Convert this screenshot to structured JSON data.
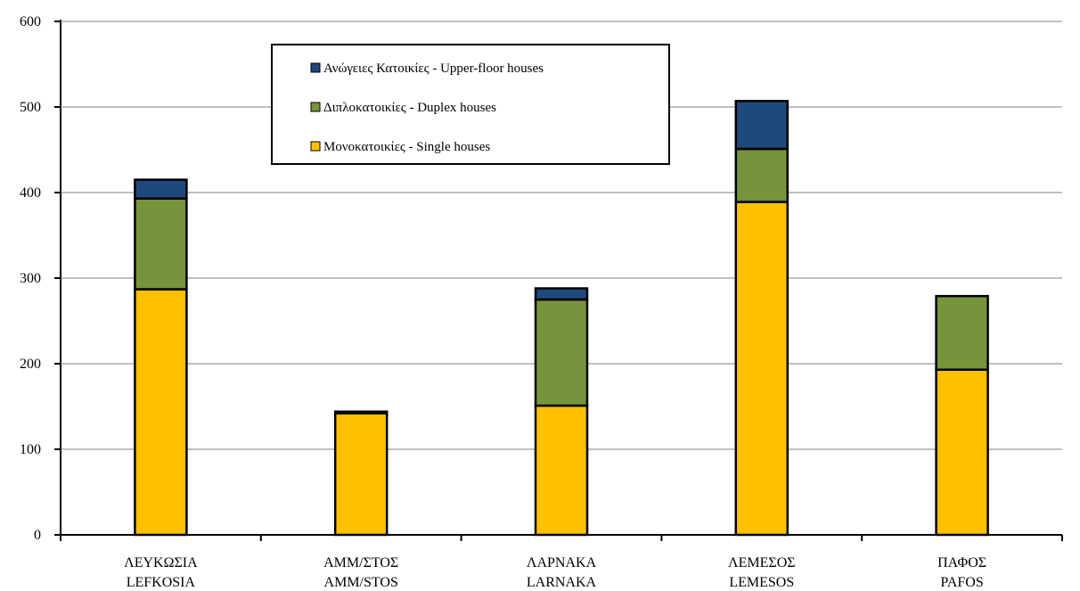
{
  "chart_data": {
    "type": "bar",
    "stacked": true,
    "categories": [
      {
        "line1": "ΛΕΥΚΩΣΙΑ",
        "line2": "LEFKOSIA"
      },
      {
        "line1": "ΑΜΜ/ΣΤΟΣ",
        "line2": "AMM/STOS"
      },
      {
        "line1": "ΛΑΡΝΑΚΑ",
        "line2": "LARNAKA"
      },
      {
        "line1": "ΛΕΜΕΣΟΣ",
        "line2": "LEMESOS"
      },
      {
        "line1": "ΠΑΦΟΣ",
        "line2": "PAFOS"
      }
    ],
    "series": [
      {
        "name": "Μονοκατοικίες - Single houses",
        "color": "#FFC000",
        "values": [
          287,
          142,
          151,
          389,
          193
        ]
      },
      {
        "name": "Διπλοκατοικίες - Duplex houses",
        "color": "#77933C",
        "values": [
          106,
          0,
          124,
          62,
          86
        ]
      },
      {
        "name": "Ανώγειες Κατοικίες - Upper-floor houses",
        "color": "#1F497D",
        "values": [
          22,
          2,
          13,
          56,
          0
        ]
      }
    ],
    "legend_order": [
      2,
      1,
      0
    ],
    "ylim": [
      0,
      600
    ],
    "yticks": [
      0,
      100,
      200,
      300,
      400,
      500,
      600
    ],
    "grid": true,
    "legend_position": "top-left-center",
    "xlabel": "",
    "ylabel": "",
    "title": ""
  }
}
